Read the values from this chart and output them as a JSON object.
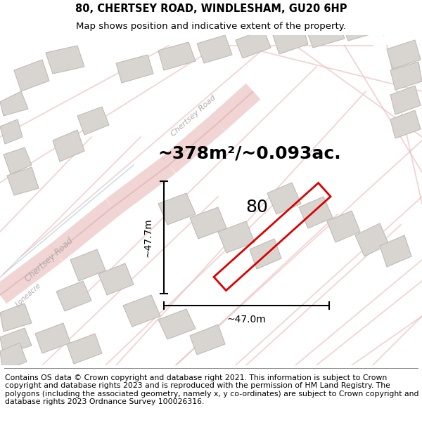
{
  "title_line1": "80, CHERTSEY ROAD, WINDLESHAM, GU20 6HP",
  "title_line2": "Map shows position and indicative extent of the property.",
  "area_text": "~378m²/~0.093ac.",
  "label_number": "80",
  "dim_vertical": "~47.7m",
  "dim_horizontal": "~47.0m",
  "footer_text": "Contains OS data © Crown copyright and database right 2021. This information is subject to Crown copyright and database rights 2023 and is reproduced with the permission of HM Land Registry. The polygons (including the associated geometry, namely x, y co-ordinates) are subject to Crown copyright and database rights 2023 Ordnance Survey 100026316.",
  "map_bg": "#f7f5f3",
  "plot_edge_color": "#dd0000",
  "road_color": "#e8b8b8",
  "road_color2": "#dba8a8",
  "building_fill": "#d8d5d0",
  "building_edge": "#c0bbb6",
  "title_fontsize": 10.5,
  "subtitle_fontsize": 9.5,
  "area_fontsize": 18,
  "number_fontsize": 18,
  "dim_fontsize": 10,
  "footer_fontsize": 7.8,
  "road_label_color": "#b0aaaa",
  "cyan_road_color": "#a0d0d8"
}
